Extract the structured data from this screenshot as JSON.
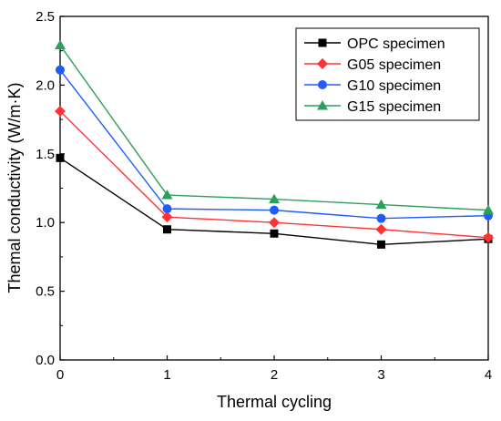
{
  "chart_data": {
    "type": "line",
    "xlabel": "Thermal cycling",
    "ylabel": "Themal conductivity (W/m·K)",
    "xlim": [
      0,
      4
    ],
    "ylim": [
      0.0,
      2.5
    ],
    "x_ticks": [
      "0",
      "1",
      "2",
      "3",
      "4"
    ],
    "y_ticks": [
      "0.0",
      "0.5",
      "1.0",
      "1.5",
      "2.0",
      "2.5"
    ],
    "x": [
      0,
      1,
      2,
      3,
      4
    ],
    "grid": false,
    "legend_position": "top-right",
    "series": [
      {
        "name": "OPC specimen",
        "color": "#000000",
        "marker": "square",
        "values": [
          1.47,
          0.95,
          0.92,
          0.84,
          0.88
        ]
      },
      {
        "name": "G05 specimen",
        "color": "#ff3333",
        "marker": "diamond",
        "values": [
          1.81,
          1.04,
          1.0,
          0.95,
          0.89
        ]
      },
      {
        "name": "G10 specimen",
        "color": "#1f5cff",
        "marker": "circle",
        "values": [
          2.11,
          1.1,
          1.09,
          1.03,
          1.05
        ]
      },
      {
        "name": "G15 specimen",
        "color": "#2ca05a",
        "marker": "triangle",
        "values": [
          2.29,
          1.2,
          1.17,
          1.13,
          1.09
        ]
      }
    ]
  }
}
